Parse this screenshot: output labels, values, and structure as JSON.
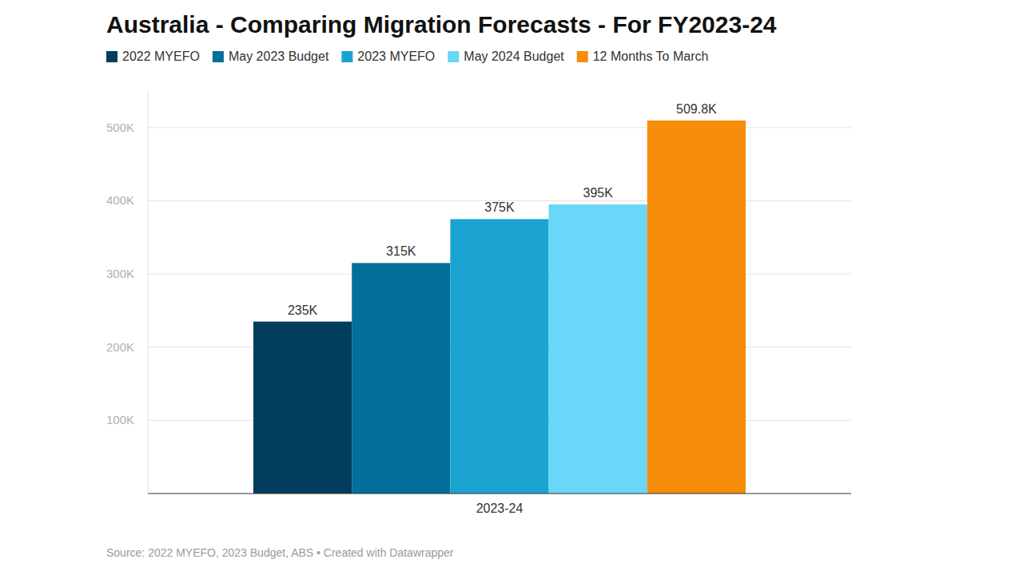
{
  "chart_data": {
    "type": "bar",
    "title": "Australia - Comparing Migration Forecasts - For FY2023-24",
    "source": "Source: 2022 MYEFO, 2023 Budget, ABS • Created with Datawrapper",
    "categories": [
      "2023-24"
    ],
    "series": [
      {
        "name": "2022 MYEFO",
        "color": "#013d5e",
        "values": [
          235000
        ],
        "value_labels": [
          "235K"
        ]
      },
      {
        "name": "May 2023 Budget",
        "color": "#036f9a",
        "values": [
          315000
        ],
        "value_labels": [
          "315K"
        ]
      },
      {
        "name": "2023 MYEFO",
        "color": "#1aa3d0",
        "values": [
          375000
        ],
        "value_labels": [
          "375K"
        ]
      },
      {
        "name": "May 2024 Budget",
        "color": "#6ad6f8",
        "values": [
          395000
        ],
        "value_labels": [
          "395K"
        ]
      },
      {
        "name": "12 Months To March",
        "color": "#f78d0a",
        "values": [
          509800
        ],
        "value_labels": [
          "509.8K"
        ]
      }
    ],
    "ylim": [
      0,
      550000
    ],
    "yticks": [
      {
        "value": 100000,
        "label": "100K"
      },
      {
        "value": 200000,
        "label": "200K"
      },
      {
        "value": 300000,
        "label": "300K"
      },
      {
        "value": 400000,
        "label": "400K"
      },
      {
        "value": 500000,
        "label": "500K"
      }
    ],
    "grid": true,
    "legend": "top-left",
    "data_labels": true
  }
}
